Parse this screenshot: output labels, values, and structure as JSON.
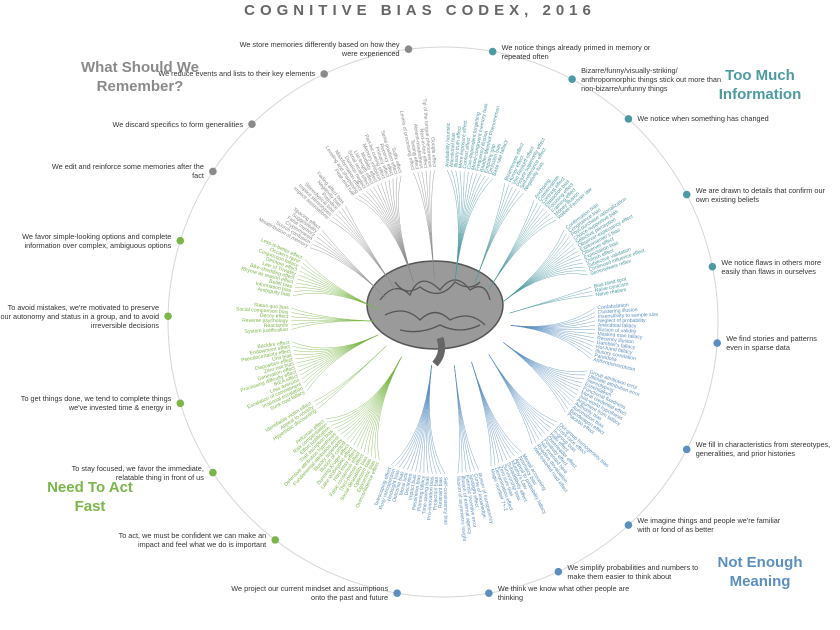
{
  "header": {
    "title": "COGNITIVE BIAS CODEX, 2016"
  },
  "quadrants": [
    {
      "title": "Too Much Information",
      "color": "#4e9aa3",
      "groups": [
        {
          "label": "We notice things already primed in memory or repeated often",
          "biases": [
            "Availability heuristic",
            "Attentional bias",
            "Illusory truth effect",
            "Mere exposure effect",
            "Context effect",
            "Cue-dependent forgetting",
            "Mood-congruent memory bias",
            "Frequency illusion",
            "Baader-Meinhof Phenomenon",
            "Empathy gap",
            "Omission bias",
            "Base rate fallacy"
          ]
        },
        {
          "label": "Bizarre/funny/visually-striking/ anthropomorphic things stick out more than non-bizarre/unfunny things",
          "biases": [
            "Bizarreness effect",
            "Humor effect",
            "Von Restorff effect",
            "Picture superiority effect",
            "Self-relevance effect",
            "Negativity bias"
          ]
        },
        {
          "label": "We notice when something has changed",
          "biases": [
            "Anchoring",
            "Conservatism",
            "Contrast effect",
            "Distinction bias",
            "Focusing effect",
            "Framing effect",
            "Money illusion",
            "Weber-Fechner law"
          ]
        },
        {
          "label": "We are drawn to details that confirm our own existing beliefs",
          "biases": [
            "Confirmation bias",
            "Congruence bias",
            "Post-purchase rationalization",
            "Choice-supportive bias",
            "Selective perception",
            "Observer-expectancy effect",
            "Experimenter's bias",
            "Observer effect",
            "Expectation bias",
            "Ostrich effect",
            "Subjective validation",
            "Continued influence effect",
            "Semmelweis reflex"
          ]
        },
        {
          "label": "We notice flaws in others more easily than flaws in ourselves",
          "biases": [
            "Bias blind spot",
            "Naïve cynicism",
            "Naïve realism"
          ]
        }
      ]
    },
    {
      "title": "Not Enough Meaning",
      "color": "#5a8fbf",
      "groups": [
        {
          "label": "We find stories and patterns even in sparse data",
          "biases": [
            "Confabulation",
            "Clustering illusion",
            "Insensitivity to sample size",
            "Neglect of probability",
            "Anecdotal fallacy",
            "Illusion of validity",
            "Masked man fallacy",
            "Recency illusion",
            "Gambler's fallacy",
            "Hot-hand fallacy",
            "Illusory correlation",
            "Pareidolia",
            "Anthropomorphism"
          ]
        },
        {
          "label": "We fill in characteristics from stereotypes, generalities, and prior histories",
          "biases": [
            "Group attribution error",
            "Ultimate attribution error",
            "Stereotyping",
            "Essentialism",
            "Functional fixedness",
            "Moral credential effect",
            "Just-world hypothesis",
            "Argument from fallacy",
            "Authority bias",
            "Automation bias",
            "Bandwagon effect",
            "Placebo effect"
          ]
        },
        {
          "label": "We imagine things and people we're familiar with or fond of as better",
          "biases": [
            "Out-group homogeneity bias",
            "Cross-race effect",
            "In-group bias",
            "Halo effect",
            "Cheerleader effect",
            "Positivity effect",
            "Not invented here",
            "Reactive devaluation",
            "Well-traveled road effect"
          ]
        },
        {
          "label": "We simplify probabilities and numbers to make them easier to think about",
          "biases": [
            "Mental accounting",
            "Normalcy bias",
            "Appeal to probability fallacy",
            "Murphy's Law",
            "Subadditivity effect",
            "Survivorship bias",
            "Zero sum bias",
            "Denomination effect",
            "Magic number 7+-2"
          ]
        },
        {
          "label": "We think we know what other people are thinking",
          "biases": [
            "Illusion of transparency",
            "Curse of knowledge",
            "Spotlight effect",
            "Extrinsic incentive error",
            "Illusion of external agency",
            "Illusion of asymmetric insight"
          ]
        },
        {
          "label": "We project our current mindset and assumptions onto the past and future",
          "biases": [
            "Self-consistency bias",
            "Restraint bias",
            "Projection bias",
            "Pro-innovation bias",
            "Time-saving bias",
            "Planning fallacy",
            "Pessimism bias",
            "Impact bias",
            "Declinism",
            "Moral luck",
            "Outcome bias",
            "Hindsight bias",
            "Rosy retrospection",
            "Telescoping effect"
          ]
        }
      ]
    },
    {
      "title": "Need To Act Fast",
      "color": "#7ab648",
      "groups": [
        {
          "label": "To act, we must be confident we can make an impact and feel what we do is important",
          "biases": [
            "Overconfidence effect",
            "Egocentric bias",
            "Optimism bias",
            "Social desirability bias",
            "Third-person effect",
            "False consensus effect",
            "Hard-easy effect",
            "Lake Wobegone effect",
            "Dunning-Kruger effect",
            "Illusion of control",
            "Illusory superiority",
            "Fundamental attribution error",
            "Defensive attribution hypothesis",
            "Trait ascription bias",
            "Effort justification",
            "Risk compensation",
            "Peltzman effect"
          ]
        },
        {
          "label": "To stay focused, we favor the immediate, relatable thing in front of us",
          "biases": [
            "Hyperbolic discounting",
            "Appeal to novelty",
            "Identifiable victim effect"
          ]
        },
        {
          "label": "To get things done, we tend to complete things we've invested time & energy in",
          "biases": [
            "Sunk cost fallacy",
            "Irrational escalation",
            "Escalation of commitment",
            "Loss aversion",
            "IKEA effect",
            "Processing difficulty effect",
            "Generation effect",
            "Zero-risk bias",
            "Disposition effect",
            "Unit bias",
            "Pseudocertainty effect",
            "Endowment effect",
            "Backfire effect"
          ]
        },
        {
          "label": "To avoid mistakes, we're motivated to preserve our autonomy and status in a group, and to avoid irreversible decisions",
          "biases": [
            "System justification",
            "Reactance",
            "Reverse psychology",
            "Decoy effect",
            "Social comparison bias",
            "Status quo bias"
          ]
        },
        {
          "label": "We favor simple-looking options and complete information over complex, ambiguous options",
          "biases": [
            "Ambiguity bias",
            "Information bias",
            "Belief bias",
            "Rhyme as reason effect",
            "Bike-shedding effect",
            "Law of Triviality",
            "Delmore effect",
            "Conjunction fallacy",
            "Occam's razor",
            "Less-is-better effect"
          ]
        }
      ]
    },
    {
      "title": "What Should We Remember?",
      "color": "#8a8a8a",
      "groups": [
        {
          "label": "We edit and reinforce some memories after the fact",
          "biases": [
            "Misattribution of memory",
            "Source confusion",
            "Cryptomnesia",
            "False memory",
            "Suggestibility",
            "Spacing effect"
          ]
        },
        {
          "label": "We discard specifics to form generalities",
          "biases": [
            "Implicit associations",
            "Implicit stereotypes",
            "Stereotypical bias",
            "Prejudice",
            "Negativity bias",
            "Fading affect bias"
          ]
        },
        {
          "label": "We reduce events and lists to their key elements",
          "biases": [
            "Peak-end rule",
            "Leveling and sharpening",
            "Misinformation effect",
            "Duration neglect",
            "Serial recall effect",
            "List-length effect",
            "Modality effect",
            "Memory inhibition",
            "Part-list cueing effect",
            "Primacy effect",
            "Recency effect",
            "Serial position effect",
            "Suffix effect"
          ]
        },
        {
          "label": "We store memories differently based on how they were experienced",
          "biases": [
            "Levels of processing effect",
            "Testing effect",
            "Absent-mindedness",
            "Next-in-line effect",
            "Tip of the tongue phenomenon",
            "Google effect"
          ]
        }
      ]
    }
  ]
}
